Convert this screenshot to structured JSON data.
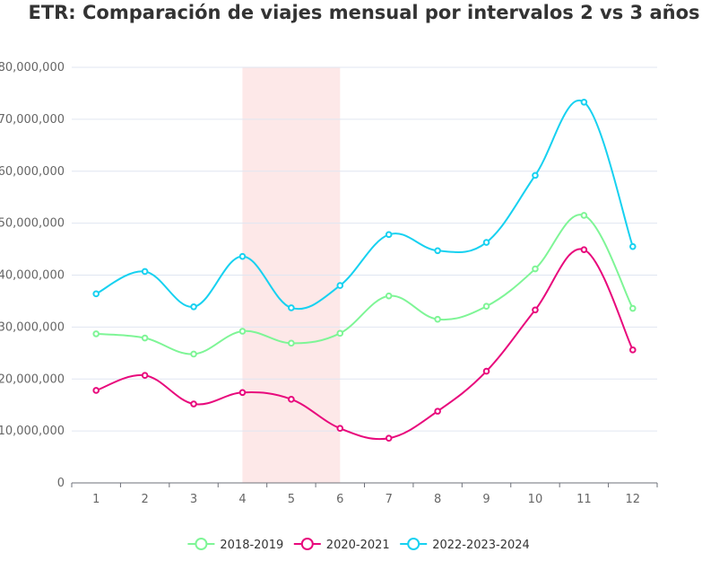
{
  "chart_data": {
    "type": "line",
    "title": "ETR: Comparación de viajes mensual por intervalos 2 vs 3 años",
    "xlabel": "",
    "ylabel": "",
    "categories": [
      "1",
      "2",
      "3",
      "4",
      "5",
      "6",
      "7",
      "8",
      "9",
      "10",
      "11",
      "12"
    ],
    "ylim": [
      0,
      80000000
    ],
    "yticks": [
      0,
      10000000,
      20000000,
      30000000,
      40000000,
      50000000,
      60000000,
      70000000,
      80000000
    ],
    "ytick_labels": [
      "0",
      "10,000,000",
      "20,000,000",
      "30,000,000",
      "40,000,000",
      "50,000,000",
      "60,000,000",
      "70,000,000",
      "80,000,000"
    ],
    "highlight_band": {
      "from": "4",
      "to": "6",
      "color": "#fde8e8"
    },
    "grid": "horizontal",
    "legend": "bottom-center",
    "series": [
      {
        "name": "2018-2019",
        "color": "#7ef596",
        "values": [
          28700000,
          27900000,
          24800000,
          29200000,
          26900000,
          28800000,
          36000000,
          31500000,
          34000000,
          41200000,
          51500000,
          33600000
        ]
      },
      {
        "name": "2020-2021",
        "color": "#e8097c",
        "values": [
          17800000,
          20700000,
          15200000,
          17400000,
          16100000,
          10500000,
          8600000,
          13800000,
          21500000,
          33300000,
          44900000,
          25600000
        ]
      },
      {
        "name": "2022-2023-2024",
        "color": "#17d1f0",
        "values": [
          36400000,
          40700000,
          33900000,
          43600000,
          33700000,
          38000000,
          47800000,
          44700000,
          46300000,
          59200000,
          73300000,
          45500000
        ]
      }
    ]
  }
}
